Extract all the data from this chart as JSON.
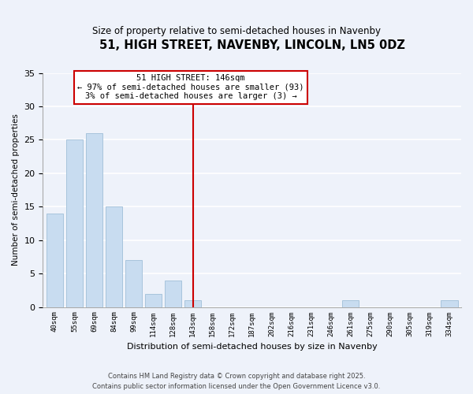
{
  "title": "51, HIGH STREET, NAVENBY, LINCOLN, LN5 0DZ",
  "subtitle": "Size of property relative to semi-detached houses in Navenby",
  "xlabel": "Distribution of semi-detached houses by size in Navenby",
  "ylabel": "Number of semi-detached properties",
  "bar_color": "#c8dcf0",
  "bar_edge_color": "#a8c4dc",
  "background_color": "#eef2fa",
  "grid_color": "#ffffff",
  "annotation_line_color": "#cc0000",
  "annotation_box_edge": "#cc0000",
  "annotation_line1": "51 HIGH STREET: 146sqm",
  "annotation_line2": "← 97% of semi-detached houses are smaller (93)",
  "annotation_line3": "3% of semi-detached houses are larger (3) →",
  "categories": [
    "40sqm",
    "55sqm",
    "69sqm",
    "84sqm",
    "99sqm",
    "114sqm",
    "128sqm",
    "143sqm",
    "158sqm",
    "172sqm",
    "187sqm",
    "202sqm",
    "216sqm",
    "231sqm",
    "246sqm",
    "261sqm",
    "275sqm",
    "290sqm",
    "305sqm",
    "319sqm",
    "334sqm"
  ],
  "values": [
    14,
    25,
    26,
    15,
    7,
    2,
    4,
    1,
    0,
    0,
    0,
    0,
    0,
    0,
    0,
    1,
    0,
    0,
    0,
    0,
    1
  ],
  "ylim": [
    0,
    35
  ],
  "yticks": [
    0,
    5,
    10,
    15,
    20,
    25,
    30,
    35
  ],
  "footnote1": "Contains HM Land Registry data © Crown copyright and database right 2025.",
  "footnote2": "Contains public sector information licensed under the Open Government Licence v3.0."
}
